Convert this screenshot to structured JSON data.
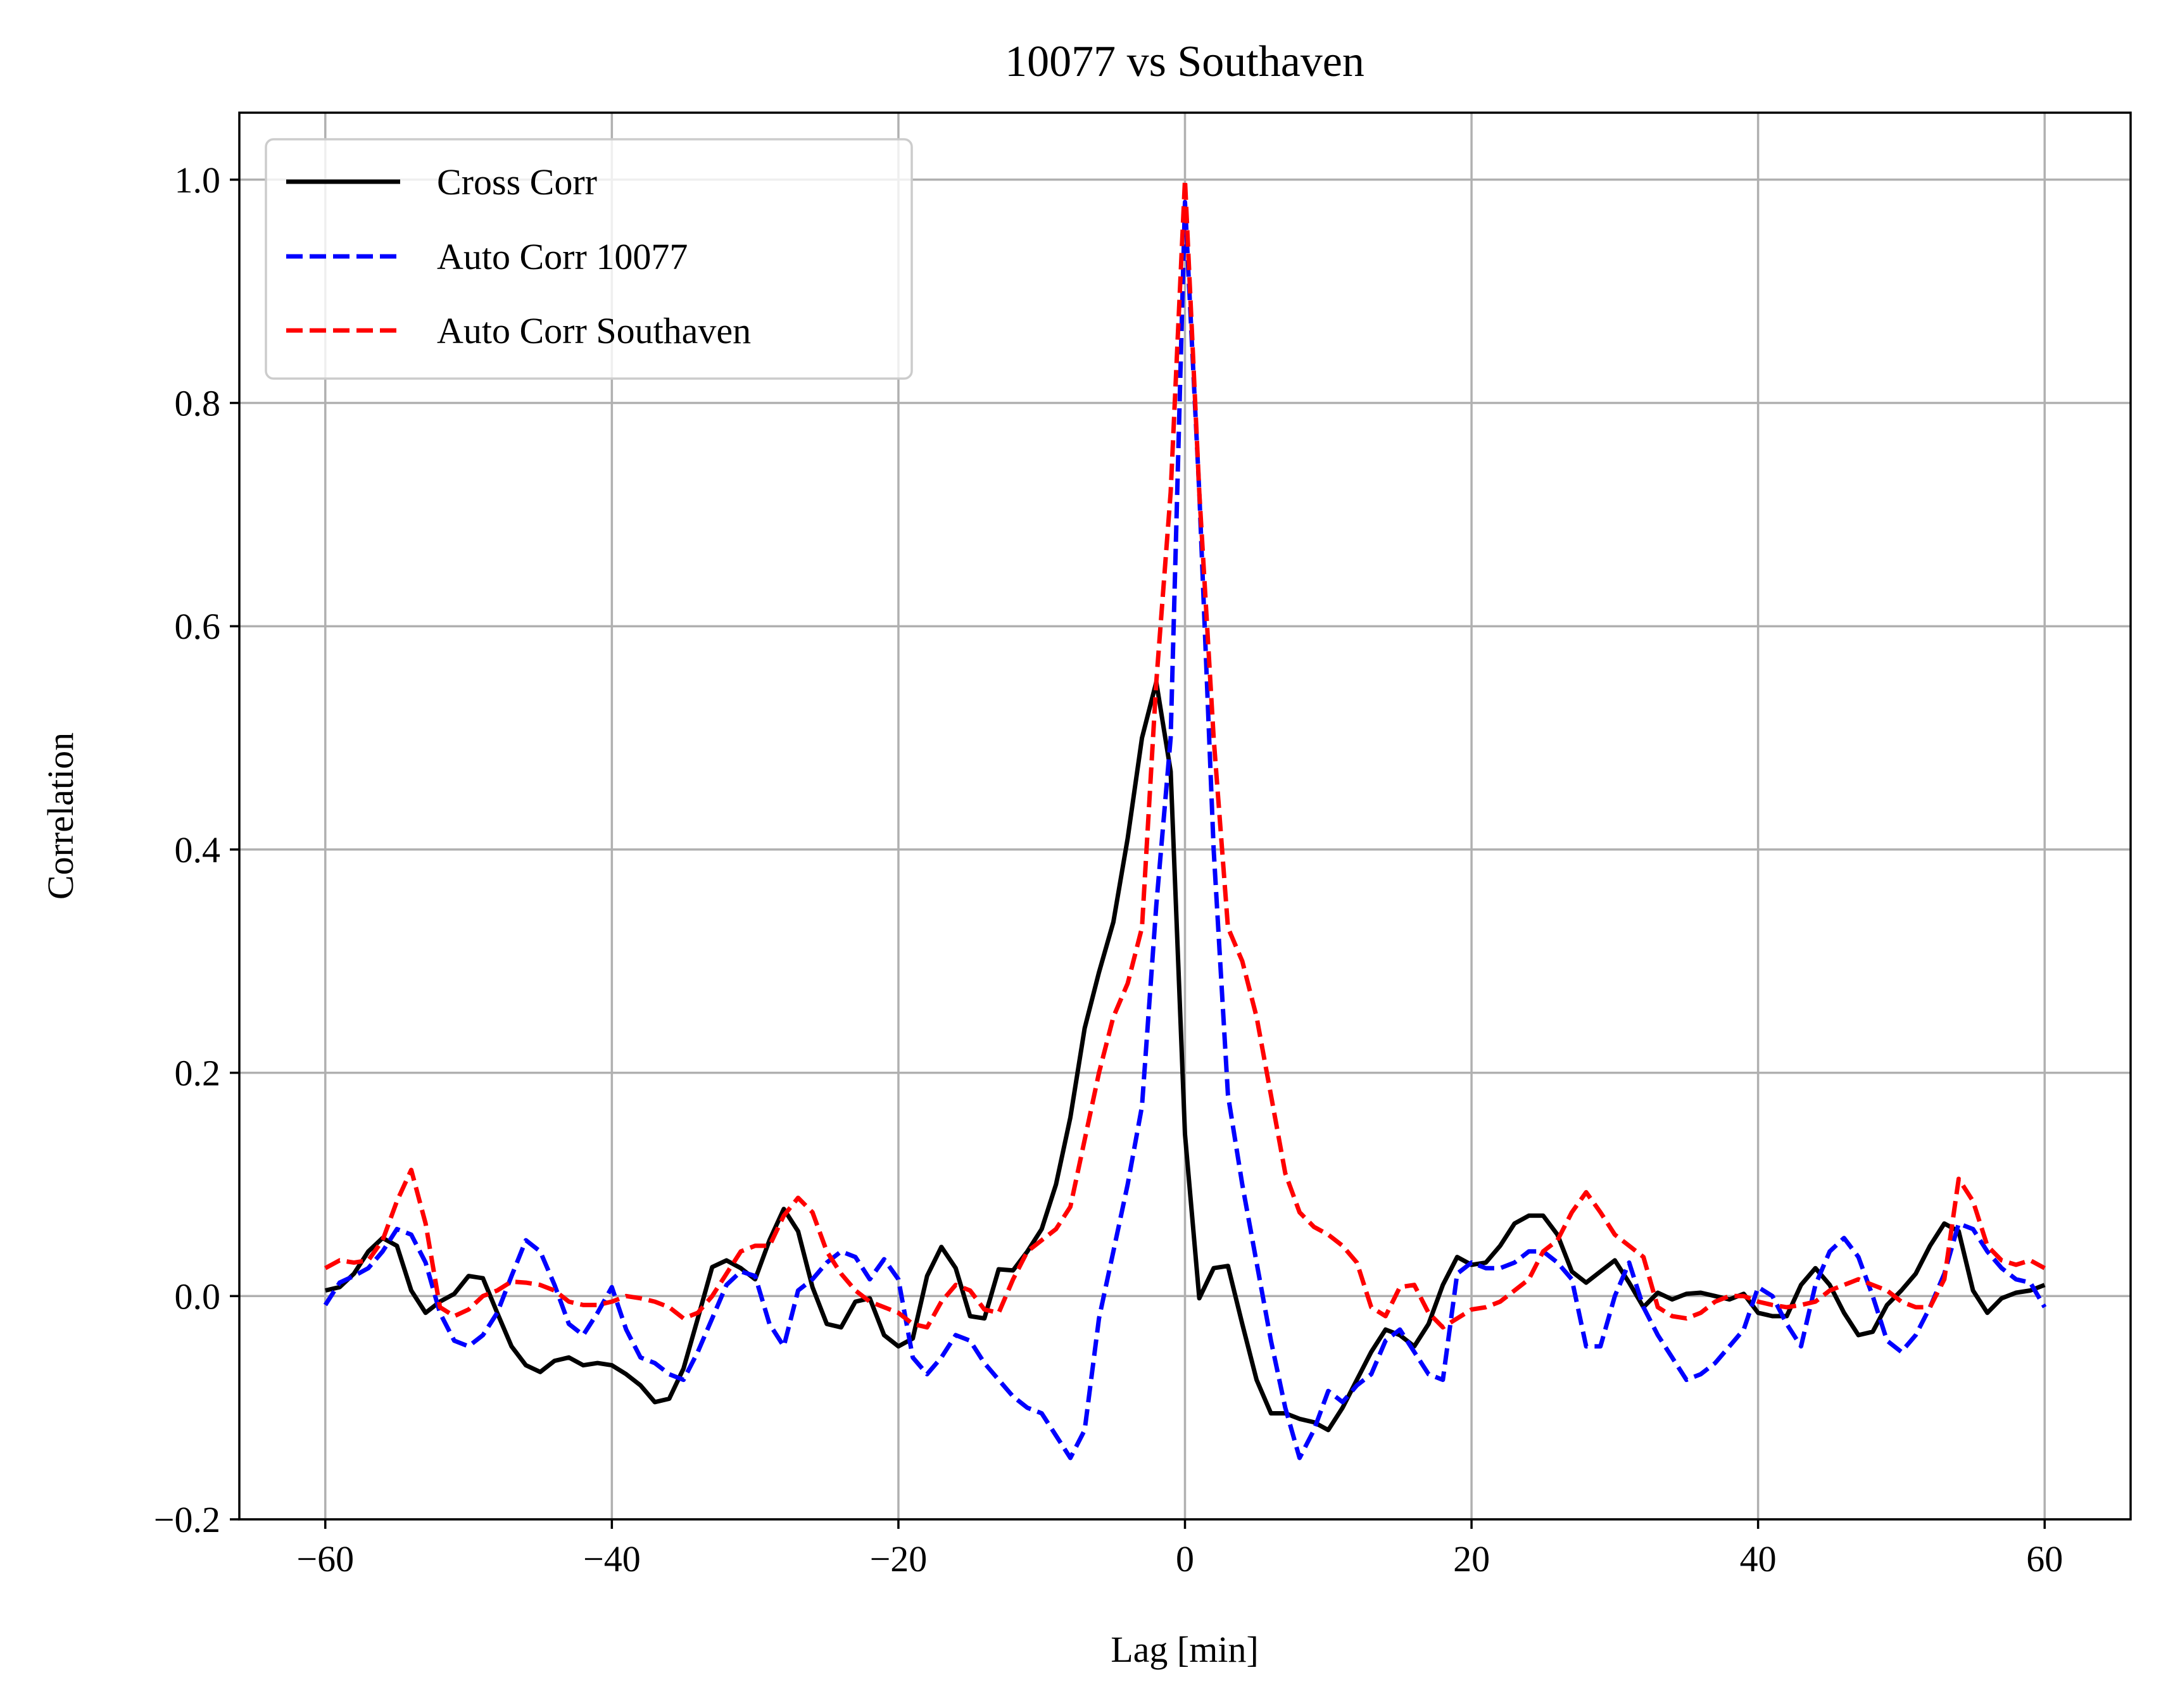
{
  "chart_data": {
    "type": "line",
    "title": "10077 vs Southaven",
    "xlabel": "Lag [min]",
    "ylabel": "Correlation",
    "xlim": [
      -66,
      66
    ],
    "ylim": [
      -0.2,
      1.06
    ],
    "xticks": [
      -60,
      -40,
      -20,
      0,
      20,
      40,
      60
    ],
    "xtick_labels": [
      "−60",
      "−40",
      "−20",
      "0",
      "20",
      "40",
      "60"
    ],
    "yticks": [
      -0.2,
      0.0,
      0.2,
      0.4,
      0.6,
      0.8,
      1.0
    ],
    "ytick_labels": [
      "−0.2",
      "0.0",
      "0.2",
      "0.4",
      "0.6",
      "0.8",
      "1.0"
    ],
    "grid": true,
    "legend_position": "top-left",
    "series": [
      {
        "name": "Cross Corr",
        "color": "#000000",
        "dash": "solid",
        "x": [
          -60,
          -59,
          -58,
          -57,
          -56,
          -55,
          -54,
          -53,
          -52,
          -51,
          -50,
          -49,
          -48,
          -47,
          -46,
          -45,
          -44,
          -43,
          -42,
          -41,
          -40,
          -39,
          -38,
          -37,
          -36,
          -35,
          -34,
          -33,
          -32,
          -31,
          -30,
          -29,
          -28,
          -27,
          -26,
          -25,
          -24,
          -23,
          -22,
          -21,
          -20,
          -19,
          -18,
          -17,
          -16,
          -15,
          -14,
          -13,
          -12,
          -11,
          -10,
          -9,
          -8,
          -7,
          -6,
          -5,
          -4,
          -3,
          -2,
          -1,
          0,
          1,
          2,
          3,
          4,
          5,
          6,
          7,
          8,
          9,
          10,
          11,
          12,
          13,
          14,
          15,
          16,
          17,
          18,
          19,
          20,
          21,
          22,
          23,
          24,
          25,
          26,
          27,
          28,
          29,
          30,
          31,
          32,
          33,
          34,
          35,
          36,
          37,
          38,
          39,
          40,
          41,
          42,
          43,
          44,
          45,
          46,
          47,
          48,
          49,
          50,
          51,
          52,
          53,
          54,
          55,
          56,
          57,
          58,
          59,
          60
        ],
        "values": [
          0.005,
          0.008,
          0.02,
          0.04,
          0.052,
          0.045,
          0.005,
          -0.015,
          -0.005,
          0.002,
          0.018,
          0.016,
          -0.015,
          -0.045,
          -0.062,
          -0.068,
          -0.058,
          -0.055,
          -0.062,
          -0.06,
          -0.062,
          -0.07,
          -0.08,
          -0.095,
          -0.092,
          -0.065,
          -0.02,
          0.026,
          0.032,
          0.025,
          0.015,
          0.05,
          0.078,
          0.058,
          0.008,
          -0.025,
          -0.028,
          -0.005,
          -0.002,
          -0.035,
          -0.045,
          -0.038,
          0.018,
          0.044,
          0.025,
          -0.018,
          -0.02,
          0.024,
          0.023,
          0.04,
          0.06,
          0.1,
          0.16,
          0.24,
          0.29,
          0.335,
          0.41,
          0.5,
          0.55,
          0.47,
          0.145,
          -0.002,
          0.025,
          0.027,
          -0.025,
          -0.075,
          -0.105,
          -0.105,
          -0.11,
          -0.113,
          -0.12,
          -0.1,
          -0.075,
          -0.05,
          -0.03,
          -0.035,
          -0.045,
          -0.025,
          0.01,
          0.035,
          0.028,
          0.03,
          0.045,
          0.065,
          0.072,
          0.072,
          0.055,
          0.022,
          0.012,
          0.022,
          0.032,
          0.012,
          -0.01,
          0.003,
          -0.003,
          0.002,
          0.003,
          0.0,
          -0.003,
          0.002,
          -0.015,
          -0.018,
          -0.018,
          0.01,
          0.025,
          0.01,
          -0.015,
          -0.035,
          -0.032,
          -0.008,
          0.005,
          0.02,
          0.045,
          0.065,
          0.058,
          0.005,
          -0.015,
          -0.002,
          0.003,
          0.005,
          0.01
        ]
      },
      {
        "name": "Auto Corr 10077",
        "color": "#0000ff",
        "dash": "dashed",
        "x": [
          -60,
          -59,
          -58,
          -57,
          -56,
          -55,
          -54,
          -53,
          -52,
          -51,
          -50,
          -49,
          -48,
          -47,
          -46,
          -45,
          -44,
          -43,
          -42,
          -41,
          -40,
          -39,
          -38,
          -37,
          -36,
          -35,
          -34,
          -33,
          -32,
          -31,
          -30,
          -29,
          -28,
          -27,
          -26,
          -25,
          -24,
          -23,
          -22,
          -21,
          -20,
          -19,
          -18,
          -17,
          -16,
          -15,
          -14,
          -13,
          -12,
          -11,
          -10,
          -9,
          -8,
          -7,
          -6,
          -5,
          -4,
          -3,
          -2,
          -1,
          0,
          1,
          2,
          3,
          4,
          5,
          6,
          7,
          8,
          9,
          10,
          11,
          12,
          13,
          14,
          15,
          16,
          17,
          18,
          19,
          20,
          21,
          22,
          23,
          24,
          25,
          26,
          27,
          28,
          29,
          30,
          31,
          32,
          33,
          34,
          35,
          36,
          37,
          38,
          39,
          40,
          41,
          42,
          43,
          44,
          45,
          46,
          47,
          48,
          49,
          50,
          51,
          52,
          53,
          54,
          55,
          56,
          57,
          58,
          59,
          60
        ],
        "values": [
          -0.008,
          0.012,
          0.018,
          0.025,
          0.04,
          0.06,
          0.055,
          0.03,
          -0.015,
          -0.04,
          -0.045,
          -0.035,
          -0.015,
          0.018,
          0.05,
          0.04,
          0.01,
          -0.025,
          -0.035,
          -0.015,
          0.008,
          -0.03,
          -0.055,
          -0.06,
          -0.07,
          -0.075,
          -0.05,
          -0.02,
          0.01,
          0.022,
          0.018,
          -0.025,
          -0.045,
          0.005,
          0.015,
          0.03,
          0.04,
          0.035,
          0.015,
          0.033,
          0.015,
          -0.055,
          -0.07,
          -0.055,
          -0.035,
          -0.04,
          -0.06,
          -0.075,
          -0.09,
          -0.1,
          -0.105,
          -0.125,
          -0.145,
          -0.12,
          -0.02,
          0.04,
          0.1,
          0.17,
          0.35,
          0.5,
          0.98,
          0.72,
          0.4,
          0.18,
          0.1,
          0.03,
          -0.04,
          -0.1,
          -0.145,
          -0.12,
          -0.085,
          -0.095,
          -0.08,
          -0.07,
          -0.04,
          -0.03,
          -0.05,
          -0.07,
          -0.075,
          0.02,
          0.03,
          0.025,
          0.025,
          0.03,
          0.04,
          0.04,
          0.03,
          0.015,
          -0.045,
          -0.045,
          0.0,
          0.03,
          -0.01,
          -0.035,
          -0.055,
          -0.075,
          -0.07,
          -0.06,
          -0.045,
          -0.03,
          0.008,
          0.0,
          -0.025,
          -0.045,
          0.01,
          0.04,
          0.052,
          0.035,
          0.0,
          -0.04,
          -0.05,
          -0.035,
          -0.01,
          0.02,
          0.065,
          0.06,
          0.04,
          0.025,
          0.015,
          0.012,
          -0.01
        ]
      },
      {
        "name": "Auto Corr Southaven",
        "color": "#ff0000",
        "dash": "dashed",
        "x": [
          -60,
          -59,
          -58,
          -57,
          -56,
          -55,
          -54,
          -53,
          -52,
          -51,
          -50,
          -49,
          -48,
          -47,
          -46,
          -45,
          -44,
          -43,
          -42,
          -41,
          -40,
          -39,
          -38,
          -37,
          -36,
          -35,
          -34,
          -33,
          -32,
          -31,
          -30,
          -29,
          -28,
          -27,
          -26,
          -25,
          -24,
          -23,
          -22,
          -21,
          -20,
          -19,
          -18,
          -17,
          -16,
          -15,
          -14,
          -13,
          -12,
          -11,
          -10,
          -9,
          -8,
          -7,
          -6,
          -5,
          -4,
          -3,
          -2,
          -1,
          0,
          1,
          2,
          3,
          4,
          5,
          6,
          7,
          8,
          9,
          10,
          11,
          12,
          13,
          14,
          15,
          16,
          17,
          18,
          19,
          20,
          21,
          22,
          23,
          24,
          25,
          26,
          27,
          28,
          29,
          30,
          31,
          32,
          33,
          34,
          35,
          36,
          37,
          38,
          39,
          40,
          41,
          42,
          43,
          44,
          45,
          46,
          47,
          48,
          49,
          50,
          51,
          52,
          53,
          54,
          55,
          56,
          57,
          58,
          59,
          60
        ],
        "values": [
          0.025,
          0.032,
          0.03,
          0.032,
          0.05,
          0.085,
          0.113,
          0.065,
          -0.01,
          -0.018,
          -0.012,
          0.0,
          0.005,
          0.013,
          0.012,
          0.01,
          0.005,
          -0.005,
          -0.008,
          -0.008,
          -0.005,
          0.0,
          -0.002,
          -0.005,
          -0.01,
          -0.02,
          -0.015,
          0.0,
          0.02,
          0.04,
          0.045,
          0.045,
          0.072,
          0.088,
          0.075,
          0.04,
          0.02,
          0.005,
          -0.005,
          -0.01,
          -0.015,
          -0.025,
          -0.028,
          -0.005,
          0.01,
          0.005,
          -0.012,
          -0.015,
          0.015,
          0.04,
          0.05,
          0.06,
          0.08,
          0.14,
          0.2,
          0.25,
          0.28,
          0.33,
          0.55,
          0.72,
          1.0,
          0.72,
          0.5,
          0.33,
          0.3,
          0.25,
          0.18,
          0.11,
          0.075,
          0.062,
          0.055,
          0.045,
          0.03,
          -0.01,
          -0.018,
          0.008,
          0.01,
          -0.015,
          -0.028,
          -0.02,
          -0.012,
          -0.01,
          -0.005,
          0.005,
          0.015,
          0.04,
          0.05,
          0.075,
          0.093,
          0.075,
          0.055,
          0.045,
          0.035,
          -0.01,
          -0.018,
          -0.02,
          -0.015,
          -0.005,
          0.0,
          0.0,
          -0.005,
          -0.008,
          -0.01,
          -0.008,
          -0.005,
          0.005,
          0.01,
          0.015,
          0.01,
          0.005,
          -0.005,
          -0.01,
          -0.01,
          0.015,
          0.105,
          0.085,
          0.045,
          0.032,
          0.028,
          0.032,
          0.025
        ]
      }
    ]
  }
}
